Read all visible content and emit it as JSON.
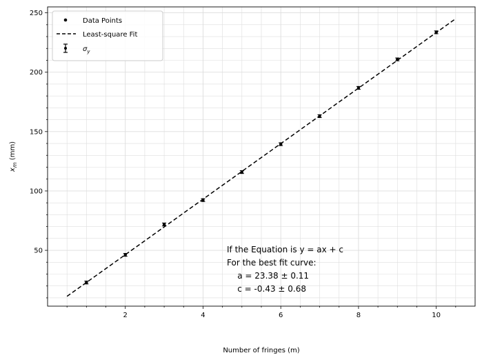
{
  "chart_data": {
    "type": "scatter",
    "xlabel": "Number of fringes (m)",
    "ylabel": "x",
    "ylabel_sub": "m",
    "ylabel_unit": " (mm)",
    "xlim": [
      0,
      11
    ],
    "ylim": [
      3,
      255
    ],
    "x_ticks": [
      2,
      4,
      6,
      8,
      10
    ],
    "y_ticks": [
      50,
      100,
      150,
      200,
      250
    ],
    "grid": true,
    "legend_placement": "top-left",
    "series": [
      {
        "name": "Data Points",
        "kind": "points",
        "x": [
          1,
          2,
          3,
          4,
          5,
          6,
          7,
          8,
          9,
          10
        ],
        "y": [
          22.9,
          46.2,
          71.8,
          92.3,
          115.9,
          139.4,
          163.0,
          186.8,
          210.8,
          233.6
        ],
        "yerr": [
          1.2,
          1.2,
          1.2,
          1.2,
          1.2,
          1.2,
          1.2,
          1.2,
          1.2,
          1.2
        ]
      },
      {
        "name": "Least-square Fit",
        "kind": "line",
        "style": "dashed",
        "x": [
          0.5,
          10.5
        ],
        "y": [
          11.26,
          245.06
        ]
      }
    ],
    "legend": [
      {
        "key": "points",
        "label": "Data Points"
      },
      {
        "key": "fit",
        "label": "Least-square Fit"
      },
      {
        "key": "err",
        "label": "σ",
        "sub": "y"
      }
    ],
    "annotation": [
      "If the Equation is y = ax + c",
      "For the best fit curve:",
      "    a = 23.38 ± 0.11",
      "    c = -0.43 ± 0.68"
    ],
    "colors": {
      "points": "#000000",
      "fit": "#000000",
      "grid": "#dddddd"
    }
  }
}
